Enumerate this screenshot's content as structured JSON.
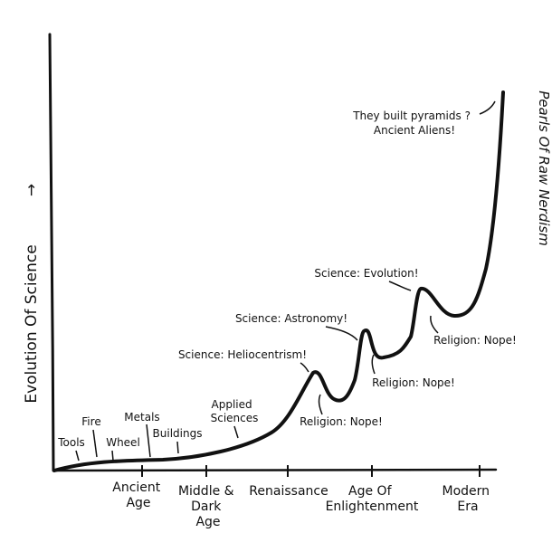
{
  "chart_data": {
    "type": "line",
    "title": "",
    "ylabel": "Evolution Of Science",
    "xlabel": "",
    "y_arrow": "→",
    "credit": "Pearls Of Raw Nerdism",
    "colors": {
      "line": "#111111",
      "background": "#ffffff"
    },
    "grid": false,
    "x_ticks": [
      {
        "lines": [
          "Ancient",
          "Age"
        ]
      },
      {
        "lines": [
          "Middle &",
          "Dark",
          "Age"
        ]
      },
      {
        "lines": [
          "Renaissance"
        ]
      },
      {
        "lines": [
          "Age Of",
          "Enlightenment"
        ]
      },
      {
        "lines": [
          "Modern",
          "Era"
        ]
      }
    ],
    "annotations": [
      {
        "id": "tools",
        "lines": [
          "Tools"
        ]
      },
      {
        "id": "fire",
        "lines": [
          "Fire"
        ]
      },
      {
        "id": "wheel",
        "lines": [
          "Wheel"
        ]
      },
      {
        "id": "metals",
        "lines": [
          "Metals"
        ]
      },
      {
        "id": "buildings",
        "lines": [
          "Buildings"
        ]
      },
      {
        "id": "applied",
        "lines": [
          "Applied",
          "Sciences"
        ]
      },
      {
        "id": "helio",
        "lines": [
          "Science: Heliocentrism!"
        ]
      },
      {
        "id": "nope1",
        "lines": [
          "Religion: Nope!"
        ]
      },
      {
        "id": "astro",
        "lines": [
          "Science: Astronomy!"
        ]
      },
      {
        "id": "nope2",
        "lines": [
          "Religion: Nope!"
        ]
      },
      {
        "id": "evolution",
        "lines": [
          "Science: Evolution!"
        ]
      },
      {
        "id": "nope3",
        "lines": [
          "Religion: Nope!"
        ]
      },
      {
        "id": "aliens",
        "lines": [
          "They built pyramids ?",
          "Ancient Aliens!"
        ]
      }
    ]
  }
}
